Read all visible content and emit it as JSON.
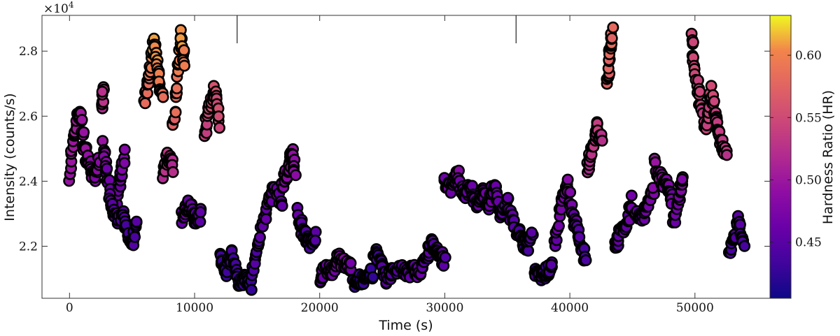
{
  "chart_data": {
    "type": "scatter",
    "xlabel": "Time (s)",
    "ylabel": "Intensity (counts/s)",
    "y_multiplier_label": "×10",
    "y_multiplier_exp": "4",
    "colorbar_label": "Hardness Ratio (HR)",
    "colormap": "plasma",
    "xlim": [
      -2200,
      56000
    ],
    "ylim": [
      20400,
      29100
    ],
    "hr_range": [
      0.405,
      0.632
    ],
    "x_ticks": [
      0,
      10000,
      20000,
      30000,
      40000,
      50000
    ],
    "x_tick_labels": [
      "0",
      "10000",
      "20000",
      "30000",
      "40000",
      "50000"
    ],
    "y_ticks": [
      22000,
      24000,
      26000,
      28000
    ],
    "y_tick_labels": [
      "2.2",
      "2.4",
      "2.6",
      "2.8"
    ],
    "cb_ticks": [
      0.45,
      0.5,
      0.55,
      0.6
    ],
    "cb_tick_labels": [
      "0.45",
      "0.50",
      "0.55",
      "0.60"
    ],
    "orbit_markers": [
      13400,
      35700
    ],
    "segments": [
      {
        "t": [
          0,
          400,
          800,
          1200,
          1600,
          2000,
          2400
        ],
        "y": [
          24200,
          25500,
          26200,
          25000,
          24500,
          24100,
          24600
        ],
        "hr": [
          0.49,
          0.51,
          0.5,
          0.5,
          0.49,
          0.48,
          0.49
        ]
      },
      {
        "t": [
          2600,
          2700
        ],
        "y": [
          26300,
          26900
        ],
        "hr": [
          0.52,
          0.53
        ]
      },
      {
        "t": [
          2700,
          3000,
          3500,
          4000,
          4400
        ],
        "y": [
          25200,
          24200,
          23100,
          23800,
          24800
        ],
        "hr": [
          0.49,
          0.47,
          0.45,
          0.47,
          0.48
        ]
      },
      {
        "t": [
          3200,
          3600,
          4200,
          4700,
          5000,
          5400
        ],
        "y": [
          23500,
          22800,
          23000,
          22500,
          22000,
          22800
        ],
        "hr": [
          0.46,
          0.45,
          0.45,
          0.44,
          0.44,
          0.45
        ]
      },
      {
        "t": [
          6000,
          6400,
          6800,
          7100,
          7400
        ],
        "y": [
          26400,
          27300,
          28300,
          27200,
          26600
        ],
        "hr": [
          0.58,
          0.59,
          0.61,
          0.6,
          0.58
        ]
      },
      {
        "t": [
          7500,
          7900,
          8300
        ],
        "y": [
          24200,
          24800,
          24400
        ],
        "hr": [
          0.52,
          0.53,
          0.52
        ]
      },
      {
        "t": [
          8300,
          8600,
          8900,
          9200
        ],
        "y": [
          25600,
          27000,
          28500,
          27600
        ],
        "hr": [
          0.57,
          0.59,
          0.61,
          0.6
        ]
      },
      {
        "t": [
          9000,
          9400,
          9800,
          10200,
          10500
        ],
        "y": [
          22900,
          23300,
          23100,
          22800,
          23000
        ],
        "hr": [
          0.46,
          0.47,
          0.46,
          0.45,
          0.46
        ]
      },
      {
        "t": [
          10800,
          11200,
          11600,
          12000
        ],
        "y": [
          25400,
          26300,
          26800,
          25800
        ],
        "hr": [
          0.54,
          0.55,
          0.56,
          0.55
        ]
      },
      {
        "t": [
          12000,
          12500,
          13000,
          13500,
          14000,
          14500
        ],
        "y": [
          21600,
          21200,
          21800,
          20900,
          21000,
          20800
        ],
        "hr": [
          0.43,
          0.43,
          0.44,
          0.43,
          0.43,
          0.43
        ]
      },
      {
        "t": [
          14600,
          15200,
          15800,
          16400,
          17000
        ],
        "y": [
          21200,
          22200,
          23200,
          23800,
          23100
        ],
        "hr": [
          0.44,
          0.45,
          0.46,
          0.47,
          0.46
        ]
      },
      {
        "t": [
          17000,
          17400,
          17800,
          18000
        ],
        "y": [
          23800,
          24300,
          24900,
          24300
        ],
        "hr": [
          0.48,
          0.49,
          0.5,
          0.49
        ]
      },
      {
        "t": [
          18200,
          18700,
          19200,
          19700
        ],
        "y": [
          23000,
          22400,
          22100,
          22300
        ],
        "hr": [
          0.46,
          0.45,
          0.44,
          0.45
        ]
      },
      {
        "t": [
          20000,
          20500,
          21000,
          21500,
          22000,
          22500
        ],
        "y": [
          21000,
          21300,
          21200,
          21600,
          21500,
          21300
        ],
        "hr": [
          0.46,
          0.47,
          0.47,
          0.48,
          0.48,
          0.47
        ]
      },
      {
        "t": [
          22700,
          23200,
          23700,
          24200
        ],
        "y": [
          20800,
          21000,
          20900,
          21200
        ],
        "hr": [
          0.43,
          0.43,
          0.43,
          0.43
        ]
      },
      {
        "t": [
          24300,
          24800,
          25300,
          25800,
          26300
        ],
        "y": [
          21900,
          21500,
          21000,
          21200,
          21300
        ],
        "hr": [
          0.44,
          0.44,
          0.45,
          0.45,
          0.45
        ]
      },
      {
        "t": [
          26500,
          27000,
          27500,
          28000,
          28500,
          29000,
          29500,
          30000
        ],
        "y": [
          21400,
          21100,
          21300,
          21200,
          21600,
          22100,
          21800,
          21500
        ],
        "hr": [
          0.45,
          0.45,
          0.46,
          0.46,
          0.45,
          0.45,
          0.45,
          0.45
        ]
      },
      {
        "t": [
          30000,
          30500,
          31000,
          31500,
          32000,
          32500,
          33000
        ],
        "y": [
          24000,
          23800,
          24300,
          23400,
          23900,
          23300,
          23700
        ],
        "hr": [
          0.47,
          0.47,
          0.48,
          0.46,
          0.47,
          0.46,
          0.47
        ]
      },
      {
        "t": [
          33000,
          33500,
          34000,
          34500,
          35000,
          35500
        ],
        "y": [
          23600,
          23300,
          23900,
          22900,
          23400,
          22600
        ],
        "hr": [
          0.47,
          0.46,
          0.47,
          0.45,
          0.46,
          0.45
        ]
      },
      {
        "t": [
          35800,
          36200,
          36600,
          37000
        ],
        "y": [
          22500,
          22100,
          22000,
          22400
        ],
        "hr": [
          0.45,
          0.44,
          0.44,
          0.45
        ]
      },
      {
        "t": [
          37200,
          37700,
          38200,
          38600
        ],
        "y": [
          21300,
          21100,
          21200,
          21500
        ],
        "hr": [
          0.44,
          0.44,
          0.44,
          0.45
        ]
      },
      {
        "t": [
          38800,
          39300,
          39800,
          40300,
          40800,
          41200
        ],
        "y": [
          22000,
          23300,
          23900,
          22800,
          22200,
          21600
        ],
        "hr": [
          0.46,
          0.47,
          0.48,
          0.46,
          0.45,
          0.44
        ]
      },
      {
        "t": [
          41400,
          41800,
          42200,
          42500
        ],
        "y": [
          24400,
          25000,
          25700,
          25200
        ],
        "hr": [
          0.52,
          0.53,
          0.54,
          0.53
        ]
      },
      {
        "t": [
          43000,
          43200,
          43400
        ],
        "y": [
          27100,
          28000,
          28600
        ],
        "hr": [
          0.57,
          0.58,
          0.58
        ]
      },
      {
        "t": [
          43600,
          44000,
          44500,
          45000
        ],
        "y": [
          21900,
          22400,
          22700,
          23400
        ],
        "hr": [
          0.45,
          0.46,
          0.46,
          0.47
        ]
      },
      {
        "t": [
          45200,
          45700,
          46200,
          46700
        ],
        "y": [
          23100,
          22800,
          23300,
          23700
        ],
        "hr": [
          0.47,
          0.46,
          0.47,
          0.48
        ]
      },
      {
        "t": [
          46800,
          47300,
          47800,
          48200
        ],
        "y": [
          24600,
          24100,
          23800,
          23400
        ],
        "hr": [
          0.5,
          0.49,
          0.48,
          0.47
        ]
      },
      {
        "t": [
          48300,
          48700,
          49000
        ],
        "y": [
          22700,
          23400,
          24200
        ],
        "hr": [
          0.46,
          0.47,
          0.48
        ]
      },
      {
        "t": [
          49700,
          50100,
          50500,
          50900,
          51300,
          51700,
          52100,
          52500
        ],
        "y": [
          28500,
          27200,
          26200,
          25500,
          26800,
          25800,
          25200,
          24800
        ],
        "hr": [
          0.55,
          0.55,
          0.54,
          0.54,
          0.55,
          0.54,
          0.53,
          0.53
        ]
      },
      {
        "t": [
          52700,
          53100,
          53500,
          53900
        ],
        "y": [
          21800,
          22200,
          22800,
          21900
        ],
        "hr": [
          0.44,
          0.44,
          0.45,
          0.44
        ]
      }
    ]
  }
}
